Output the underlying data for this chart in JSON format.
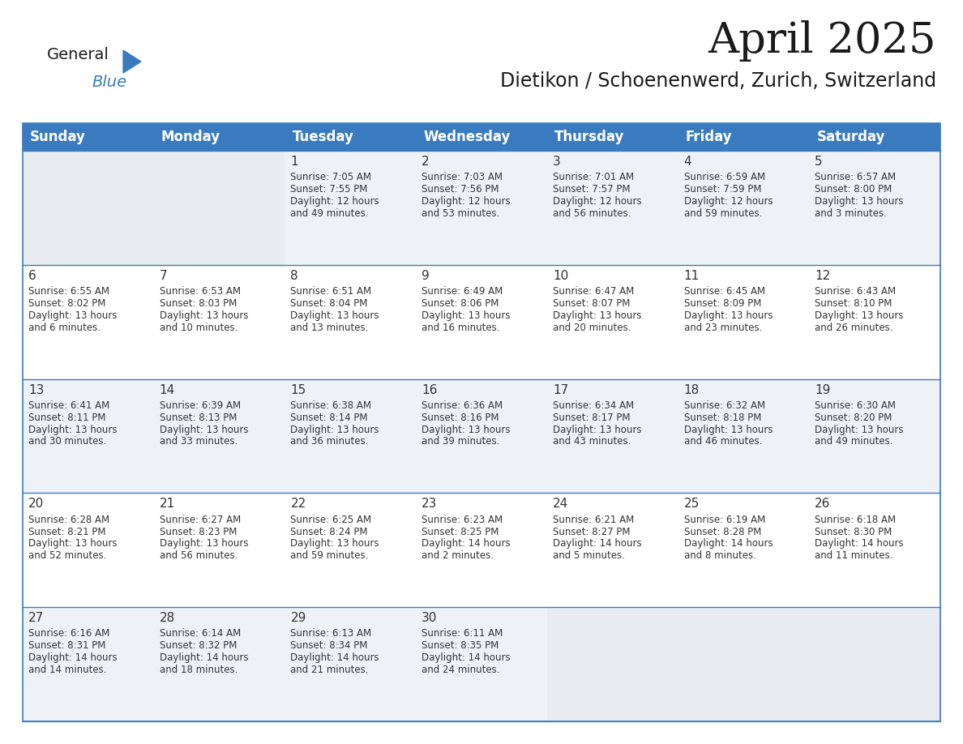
{
  "title": "April 2025",
  "subtitle": "Dietikon / Schoenenwerd, Zurich, Switzerland",
  "header_bg_color": "#3a7bbf",
  "header_text_color": "#ffffff",
  "row_bg_colors": [
    "#eef2f7",
    "#ffffff"
  ],
  "empty_cell_bg": "#e8ecf1",
  "text_color": "#333333",
  "border_color": "#3a7bbf",
  "days_of_week": [
    "Sunday",
    "Monday",
    "Tuesday",
    "Wednesday",
    "Thursday",
    "Friday",
    "Saturday"
  ],
  "weeks": [
    [
      {
        "day": "",
        "sunrise": "",
        "sunset": "",
        "daylight": ""
      },
      {
        "day": "",
        "sunrise": "",
        "sunset": "",
        "daylight": ""
      },
      {
        "day": "1",
        "sunrise": "Sunrise: 7:05 AM",
        "sunset": "Sunset: 7:55 PM",
        "daylight": "Daylight: 12 hours\nand 49 minutes."
      },
      {
        "day": "2",
        "sunrise": "Sunrise: 7:03 AM",
        "sunset": "Sunset: 7:56 PM",
        "daylight": "Daylight: 12 hours\nand 53 minutes."
      },
      {
        "day": "3",
        "sunrise": "Sunrise: 7:01 AM",
        "sunset": "Sunset: 7:57 PM",
        "daylight": "Daylight: 12 hours\nand 56 minutes."
      },
      {
        "day": "4",
        "sunrise": "Sunrise: 6:59 AM",
        "sunset": "Sunset: 7:59 PM",
        "daylight": "Daylight: 12 hours\nand 59 minutes."
      },
      {
        "day": "5",
        "sunrise": "Sunrise: 6:57 AM",
        "sunset": "Sunset: 8:00 PM",
        "daylight": "Daylight: 13 hours\nand 3 minutes."
      }
    ],
    [
      {
        "day": "6",
        "sunrise": "Sunrise: 6:55 AM",
        "sunset": "Sunset: 8:02 PM",
        "daylight": "Daylight: 13 hours\nand 6 minutes."
      },
      {
        "day": "7",
        "sunrise": "Sunrise: 6:53 AM",
        "sunset": "Sunset: 8:03 PM",
        "daylight": "Daylight: 13 hours\nand 10 minutes."
      },
      {
        "day": "8",
        "sunrise": "Sunrise: 6:51 AM",
        "sunset": "Sunset: 8:04 PM",
        "daylight": "Daylight: 13 hours\nand 13 minutes."
      },
      {
        "day": "9",
        "sunrise": "Sunrise: 6:49 AM",
        "sunset": "Sunset: 8:06 PM",
        "daylight": "Daylight: 13 hours\nand 16 minutes."
      },
      {
        "day": "10",
        "sunrise": "Sunrise: 6:47 AM",
        "sunset": "Sunset: 8:07 PM",
        "daylight": "Daylight: 13 hours\nand 20 minutes."
      },
      {
        "day": "11",
        "sunrise": "Sunrise: 6:45 AM",
        "sunset": "Sunset: 8:09 PM",
        "daylight": "Daylight: 13 hours\nand 23 minutes."
      },
      {
        "day": "12",
        "sunrise": "Sunrise: 6:43 AM",
        "sunset": "Sunset: 8:10 PM",
        "daylight": "Daylight: 13 hours\nand 26 minutes."
      }
    ],
    [
      {
        "day": "13",
        "sunrise": "Sunrise: 6:41 AM",
        "sunset": "Sunset: 8:11 PM",
        "daylight": "Daylight: 13 hours\nand 30 minutes."
      },
      {
        "day": "14",
        "sunrise": "Sunrise: 6:39 AM",
        "sunset": "Sunset: 8:13 PM",
        "daylight": "Daylight: 13 hours\nand 33 minutes."
      },
      {
        "day": "15",
        "sunrise": "Sunrise: 6:38 AM",
        "sunset": "Sunset: 8:14 PM",
        "daylight": "Daylight: 13 hours\nand 36 minutes."
      },
      {
        "day": "16",
        "sunrise": "Sunrise: 6:36 AM",
        "sunset": "Sunset: 8:16 PM",
        "daylight": "Daylight: 13 hours\nand 39 minutes."
      },
      {
        "day": "17",
        "sunrise": "Sunrise: 6:34 AM",
        "sunset": "Sunset: 8:17 PM",
        "daylight": "Daylight: 13 hours\nand 43 minutes."
      },
      {
        "day": "18",
        "sunrise": "Sunrise: 6:32 AM",
        "sunset": "Sunset: 8:18 PM",
        "daylight": "Daylight: 13 hours\nand 46 minutes."
      },
      {
        "day": "19",
        "sunrise": "Sunrise: 6:30 AM",
        "sunset": "Sunset: 8:20 PM",
        "daylight": "Daylight: 13 hours\nand 49 minutes."
      }
    ],
    [
      {
        "day": "20",
        "sunrise": "Sunrise: 6:28 AM",
        "sunset": "Sunset: 8:21 PM",
        "daylight": "Daylight: 13 hours\nand 52 minutes."
      },
      {
        "day": "21",
        "sunrise": "Sunrise: 6:27 AM",
        "sunset": "Sunset: 8:23 PM",
        "daylight": "Daylight: 13 hours\nand 56 minutes."
      },
      {
        "day": "22",
        "sunrise": "Sunrise: 6:25 AM",
        "sunset": "Sunset: 8:24 PM",
        "daylight": "Daylight: 13 hours\nand 59 minutes."
      },
      {
        "day": "23",
        "sunrise": "Sunrise: 6:23 AM",
        "sunset": "Sunset: 8:25 PM",
        "daylight": "Daylight: 14 hours\nand 2 minutes."
      },
      {
        "day": "24",
        "sunrise": "Sunrise: 6:21 AM",
        "sunset": "Sunset: 8:27 PM",
        "daylight": "Daylight: 14 hours\nand 5 minutes."
      },
      {
        "day": "25",
        "sunrise": "Sunrise: 6:19 AM",
        "sunset": "Sunset: 8:28 PM",
        "daylight": "Daylight: 14 hours\nand 8 minutes."
      },
      {
        "day": "26",
        "sunrise": "Sunrise: 6:18 AM",
        "sunset": "Sunset: 8:30 PM",
        "daylight": "Daylight: 14 hours\nand 11 minutes."
      }
    ],
    [
      {
        "day": "27",
        "sunrise": "Sunrise: 6:16 AM",
        "sunset": "Sunset: 8:31 PM",
        "daylight": "Daylight: 14 hours\nand 14 minutes."
      },
      {
        "day": "28",
        "sunrise": "Sunrise: 6:14 AM",
        "sunset": "Sunset: 8:32 PM",
        "daylight": "Daylight: 14 hours\nand 18 minutes."
      },
      {
        "day": "29",
        "sunrise": "Sunrise: 6:13 AM",
        "sunset": "Sunset: 8:34 PM",
        "daylight": "Daylight: 14 hours\nand 21 minutes."
      },
      {
        "day": "30",
        "sunrise": "Sunrise: 6:11 AM",
        "sunset": "Sunset: 8:35 PM",
        "daylight": "Daylight: 14 hours\nand 24 minutes."
      },
      {
        "day": "",
        "sunrise": "",
        "sunset": "",
        "daylight": ""
      },
      {
        "day": "",
        "sunrise": "",
        "sunset": "",
        "daylight": ""
      },
      {
        "day": "",
        "sunrise": "",
        "sunset": "",
        "daylight": ""
      }
    ]
  ],
  "logo_text_general": "General",
  "logo_text_blue": "Blue",
  "logo_color_general": "#1a1a1a",
  "logo_color_blue": "#3a7bbf",
  "title_fontsize": 38,
  "subtitle_fontsize": 17,
  "header_fontsize": 12,
  "day_num_fontsize": 11,
  "cell_text_fontsize": 8.5
}
